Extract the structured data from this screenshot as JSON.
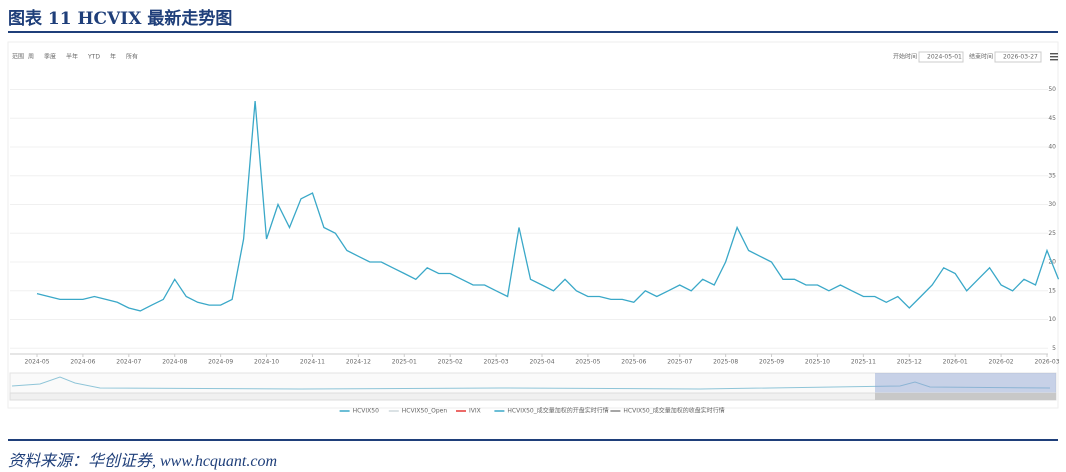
{
  "header": {
    "title": "图表 11 HCVIX 最新走势图"
  },
  "controls": {
    "range_label": "范围",
    "buttons": [
      "周",
      "季度",
      "半年",
      "YTD",
      "年",
      "所有"
    ],
    "start_label": "开始时间",
    "start_value": "2024-05-01",
    "end_label": "结束时间",
    "end_value": "2026-03-27"
  },
  "chart_data": {
    "type": "line",
    "categories": [
      "2024-05",
      null,
      null,
      null,
      "2024-06",
      null,
      null,
      null,
      "2024-07",
      null,
      null,
      null,
      "2024-08",
      null,
      null,
      null,
      "2024-09",
      null,
      null,
      null,
      "2024-10",
      null,
      null,
      null,
      "2024-11",
      null,
      null,
      null,
      "2024-12",
      null,
      null,
      null,
      "2025-01",
      null,
      null,
      null,
      "2025-02",
      null,
      null,
      null,
      "2025-03",
      null,
      null,
      null,
      "2025-04",
      null,
      null,
      null,
      "2025-05",
      null,
      null,
      null,
      "2025-06",
      null,
      null,
      null,
      "2025-07",
      null,
      null,
      null,
      "2025-08",
      null,
      null,
      null,
      "2025-09",
      null,
      null,
      null,
      "2025-10",
      null,
      null,
      null,
      "2025-11",
      null,
      null,
      null,
      "2025-12",
      null,
      null,
      null,
      "2026-01",
      null,
      null,
      null,
      "2026-02",
      null,
      null,
      null,
      "2026-03",
      null
    ],
    "series": [
      {
        "name": "HCVIX50",
        "color": "#3aa8c8",
        "values": [
          14.5,
          14,
          13.5,
          13.5,
          13.5,
          14,
          13.5,
          13,
          12,
          11.5,
          12.5,
          13.5,
          17,
          14,
          13,
          12.5,
          12.5,
          13.5,
          24,
          48,
          24,
          30,
          26,
          31,
          32,
          26,
          25,
          22,
          21,
          20,
          20,
          19,
          18,
          17,
          19,
          18,
          18,
          17,
          16,
          16,
          15,
          14,
          26,
          17,
          16,
          15,
          17,
          15,
          14,
          14,
          13.5,
          13.5,
          13,
          15,
          14,
          15,
          16,
          15,
          17,
          16,
          20,
          26,
          22,
          21,
          20,
          17,
          17,
          16,
          16,
          15,
          16,
          15,
          14,
          14,
          13,
          14,
          12,
          14,
          16,
          19,
          18,
          15,
          17,
          19,
          16,
          15,
          17,
          16,
          22,
          17
        ]
      }
    ],
    "legend": [
      {
        "name": "HCVIX50",
        "color": "#3aa8c8"
      },
      {
        "name": "HCVIX50_Open",
        "color": "#cfd8dc"
      },
      {
        "name": "IVIX",
        "color": "#e53935"
      },
      {
        "name": "HCVIX50_成交量加权的开盘实时行情",
        "color": "#3aa8c8"
      },
      {
        "name": "HCVIX50_成交量加权的收盘实时行情",
        "color": "#888888"
      }
    ],
    "ylim": [
      4,
      52
    ],
    "yticks": [
      5,
      10,
      15,
      20,
      25,
      30,
      35,
      40,
      45,
      50
    ],
    "grid": true
  },
  "footer": {
    "source": "资料来源：华创证券, www.hcquant.com"
  }
}
